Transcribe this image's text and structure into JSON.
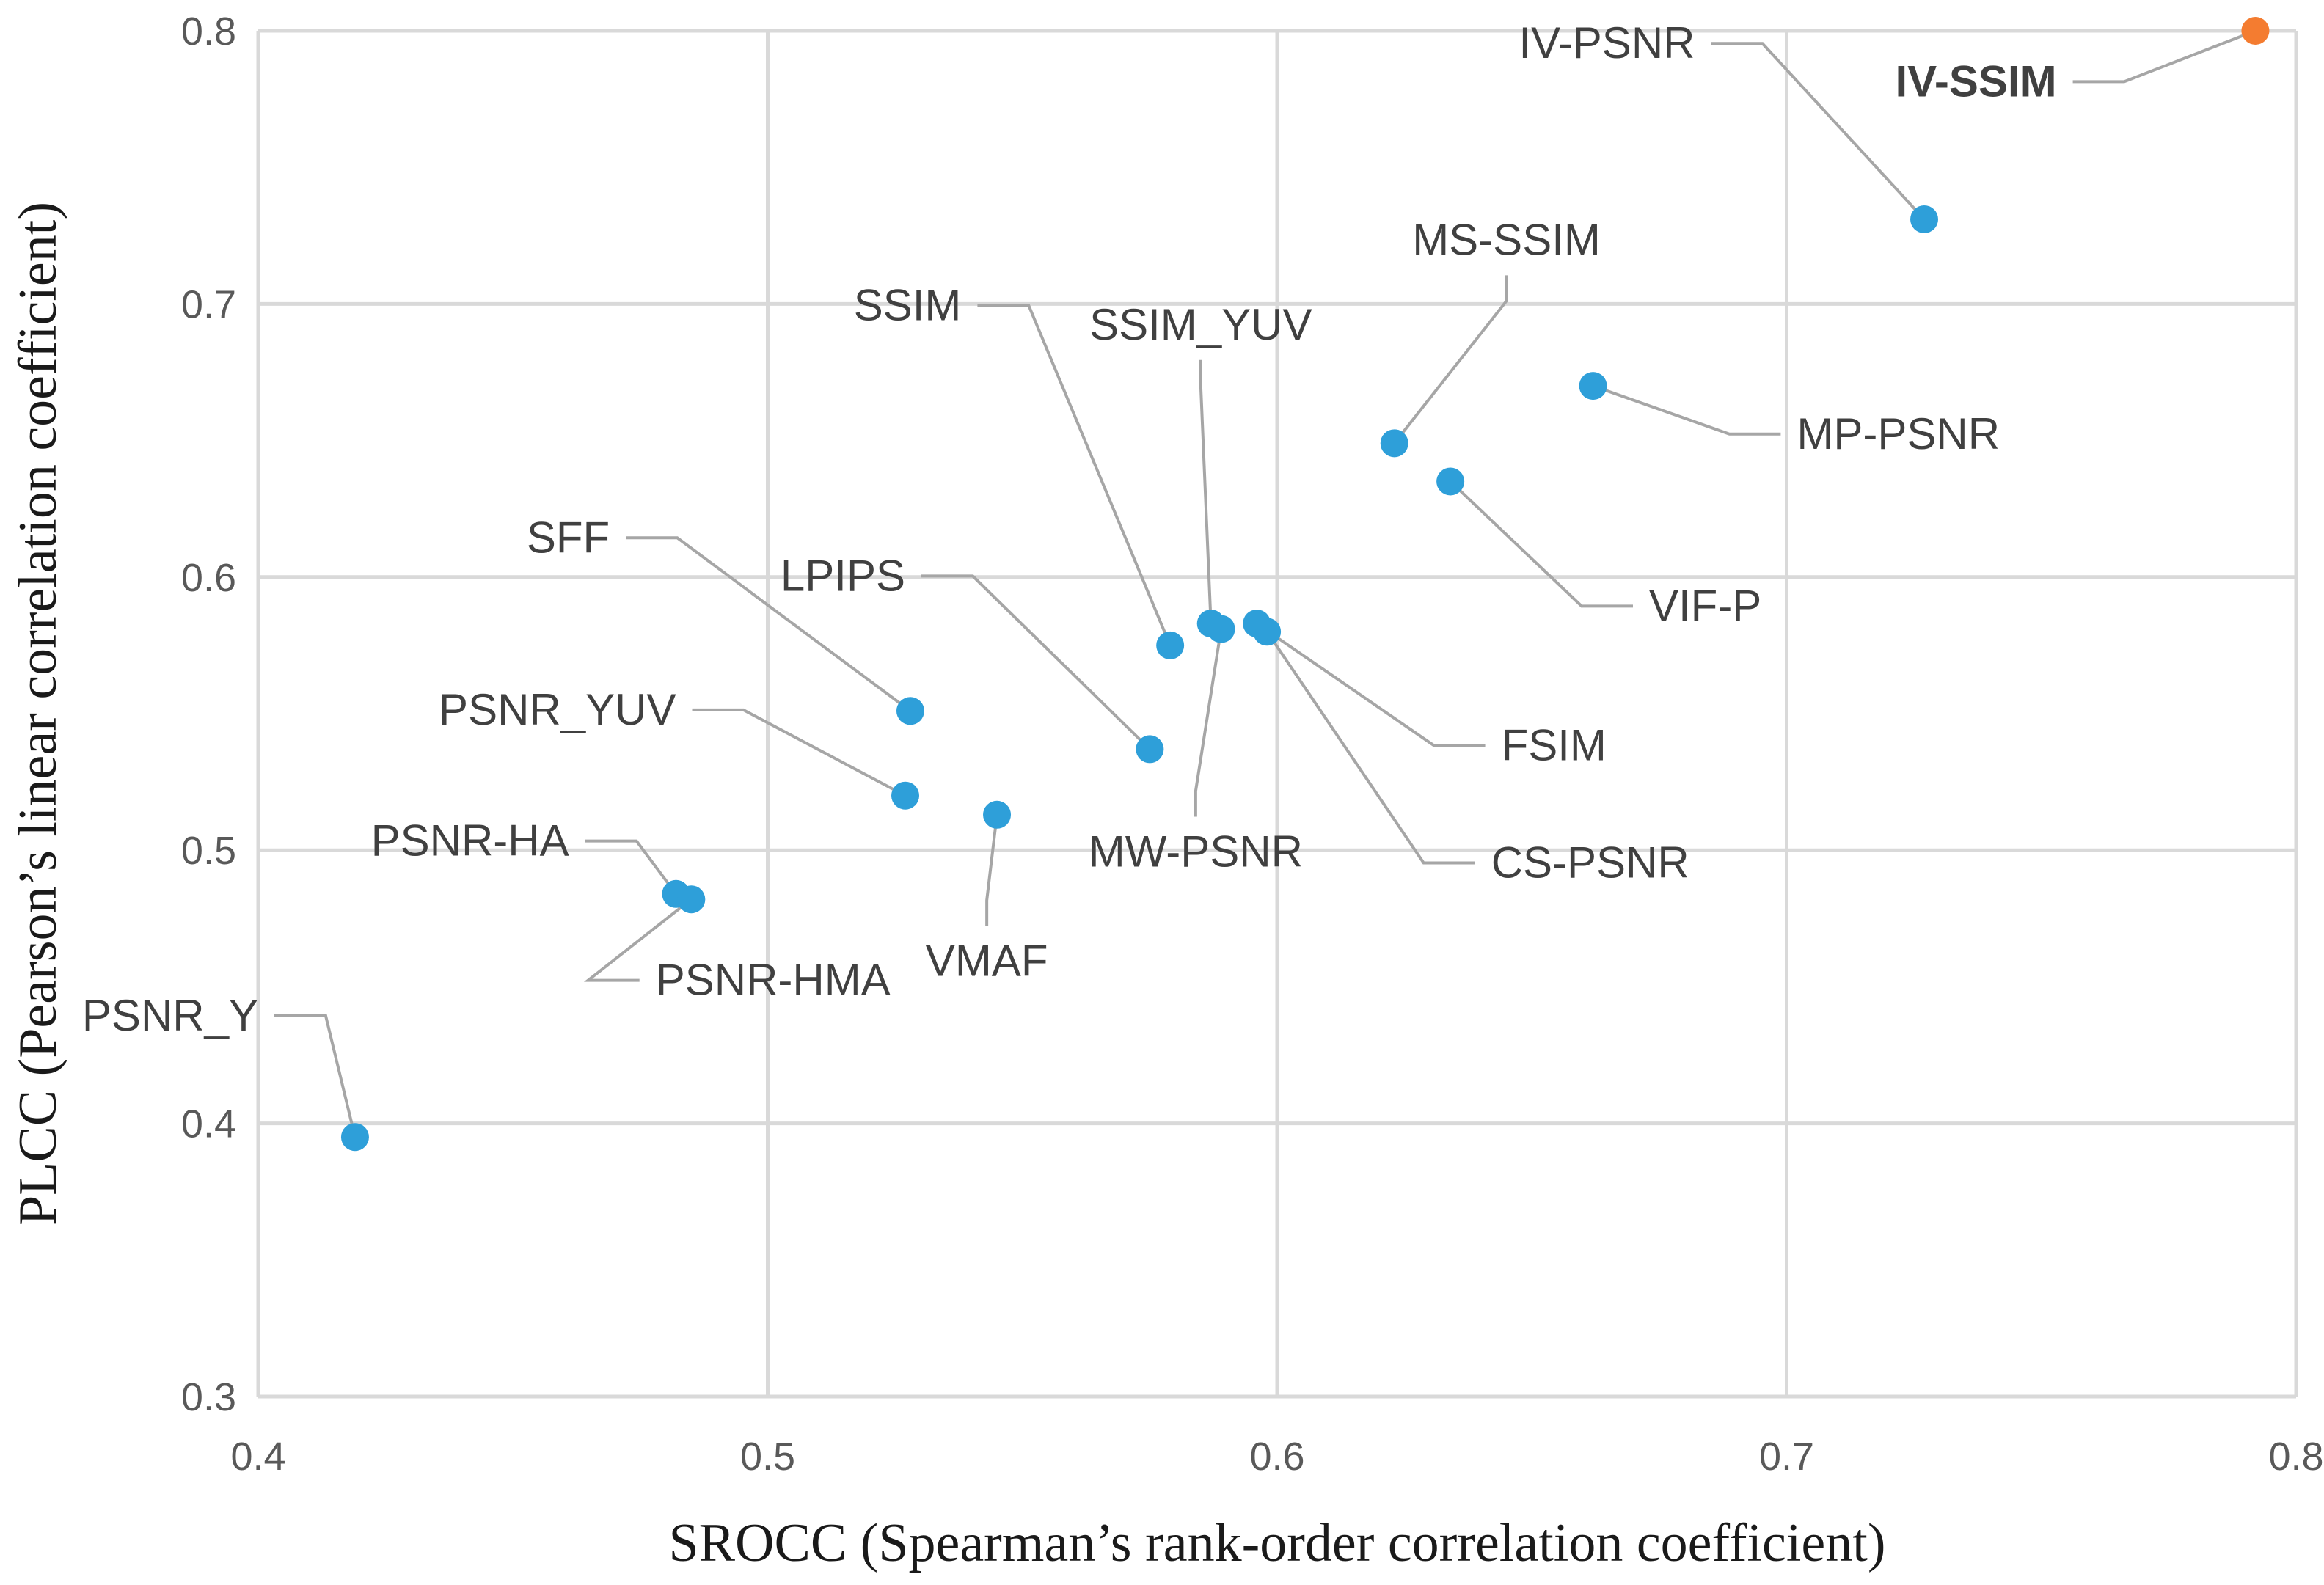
{
  "chart_data": {
    "type": "scatter",
    "title": "",
    "xlabel": "SROCC (Spearman’s rank-order correlation coefficient)",
    "ylabel": "PLCC (Pearson’s linear correlation coefficient)",
    "xlim": [
      0.4,
      0.8
    ],
    "ylim": [
      0.3,
      0.8
    ],
    "grid": true,
    "x_ticks": [
      "0.4",
      "0.5",
      "0.6",
      "0.7",
      "0.8"
    ],
    "y_ticks": [
      "0.3",
      "0.4",
      "0.5",
      "0.6",
      "0.7",
      "0.8"
    ],
    "colors": {
      "default": "#2e9fd9",
      "highlight": "#f47c30"
    },
    "points": [
      {
        "name": "PSNR_Y",
        "x": 0.419,
        "y": 0.395,
        "label_x": 0.4,
        "label_y": 0.434,
        "anchor": "end"
      },
      {
        "name": "PSNR-HA",
        "x": 0.482,
        "y": 0.484,
        "label_x": 0.461,
        "label_y": 0.498,
        "anchor": "end"
      },
      {
        "name": "PSNR-HMA",
        "x": 0.485,
        "y": 0.482,
        "label_x": 0.478,
        "label_y": 0.447,
        "anchor": "start"
      },
      {
        "name": "PSNR_YUV",
        "x": 0.527,
        "y": 0.52,
        "label_x": 0.482,
        "label_y": 0.546,
        "anchor": "end"
      },
      {
        "name": "SFF",
        "x": 0.528,
        "y": 0.551,
        "label_x": 0.469,
        "label_y": 0.609,
        "anchor": "end"
      },
      {
        "name": "VMAF",
        "x": 0.545,
        "y": 0.513,
        "label_x": 0.543,
        "label_y": 0.454,
        "anchor": "middle"
      },
      {
        "name": "LPIPS",
        "x": 0.575,
        "y": 0.537,
        "label_x": 0.527,
        "label_y": 0.595,
        "anchor": "end"
      },
      {
        "name": "SSIM",
        "x": 0.579,
        "y": 0.575,
        "label_x": 0.538,
        "label_y": 0.694,
        "anchor": "end"
      },
      {
        "name": "SSIM_YUV",
        "x": 0.587,
        "y": 0.583,
        "label_x": 0.585,
        "label_y": 0.687,
        "anchor": "middle"
      },
      {
        "name": "MW-PSNR",
        "x": 0.589,
        "y": 0.581,
        "label_x": 0.584,
        "label_y": 0.494,
        "anchor": "middle"
      },
      {
        "name": "FSIM",
        "x": 0.596,
        "y": 0.583,
        "label_x": 0.644,
        "label_y": 0.533,
        "anchor": "start"
      },
      {
        "name": "CS-PSNR",
        "x": 0.598,
        "y": 0.58,
        "label_x": 0.642,
        "label_y": 0.49,
        "anchor": "start"
      },
      {
        "name": "MS-SSIM",
        "x": 0.623,
        "y": 0.649,
        "label_x": 0.645,
        "label_y": 0.718,
        "anchor": "middle"
      },
      {
        "name": "VIF-P",
        "x": 0.634,
        "y": 0.635,
        "label_x": 0.673,
        "label_y": 0.584,
        "anchor": "start"
      },
      {
        "name": "MP-PSNR",
        "x": 0.662,
        "y": 0.67,
        "label_x": 0.702,
        "label_y": 0.647,
        "anchor": "start"
      },
      {
        "name": "IV-PSNR",
        "x": 0.727,
        "y": 0.731,
        "label_x": 0.682,
        "label_y": 0.79,
        "anchor": "end"
      },
      {
        "name": "IV-SSIM",
        "x": 0.792,
        "y": 0.8,
        "label_x": 0.753,
        "label_y": 0.776,
        "anchor": "end",
        "highlight": true
      }
    ]
  }
}
